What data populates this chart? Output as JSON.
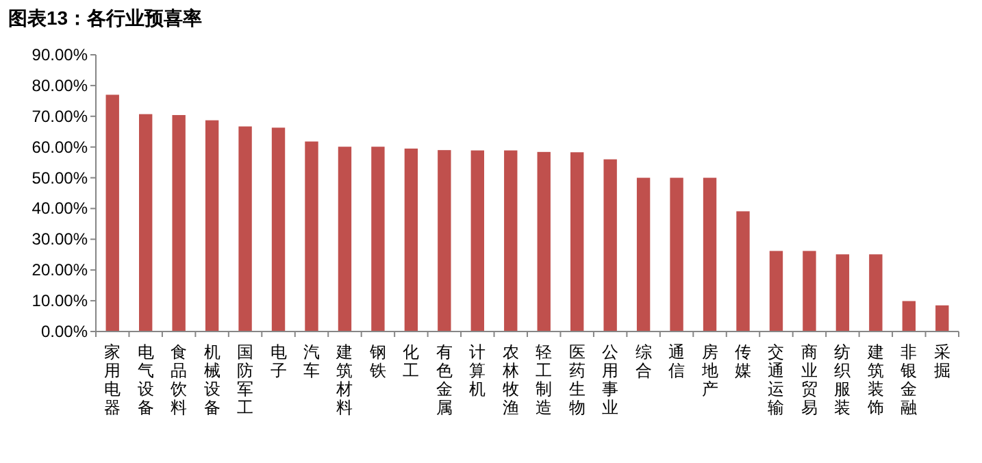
{
  "chart_data": {
    "type": "bar",
    "title": "图表13：各行业预喜率",
    "categories": [
      "家用电器",
      "电气设备",
      "食品饮料",
      "机械设备",
      "国防军工",
      "电子",
      "汽车",
      "建筑材料",
      "钢铁",
      "化工",
      "有色金属",
      "计算机",
      "农林牧渔",
      "轻工制造",
      "医药生物",
      "公用事业",
      "综合",
      "通信",
      "房地产",
      "传媒",
      "交通运输",
      "商业贸易",
      "纺织服装",
      "建筑装饰",
      "非银金融",
      "采掘"
    ],
    "values": [
      77.0,
      70.7,
      70.4,
      68.7,
      66.7,
      66.3,
      61.8,
      60.1,
      60.1,
      59.5,
      59.0,
      58.9,
      58.9,
      58.4,
      58.3,
      56.0,
      50.0,
      50.0,
      50.0,
      39.1,
      26.2,
      26.2,
      25.1,
      25.1,
      9.9,
      8.5
    ],
    "color": "#c0504d",
    "ylim": [
      0,
      90
    ],
    "yticks": [
      {
        "value": 0,
        "label": "0.00%"
      },
      {
        "value": 10,
        "label": "10.00%"
      },
      {
        "value": 20,
        "label": "20.00%"
      },
      {
        "value": 30,
        "label": "30.00%"
      },
      {
        "value": 40,
        "label": "40.00%"
      },
      {
        "value": 50,
        "label": "50.00%"
      },
      {
        "value": 60,
        "label": "60.00%"
      },
      {
        "value": 70,
        "label": "70.00%"
      },
      {
        "value": 80,
        "label": "80.00%"
      },
      {
        "value": 90,
        "label": "90.00%"
      }
    ],
    "grid": false
  }
}
